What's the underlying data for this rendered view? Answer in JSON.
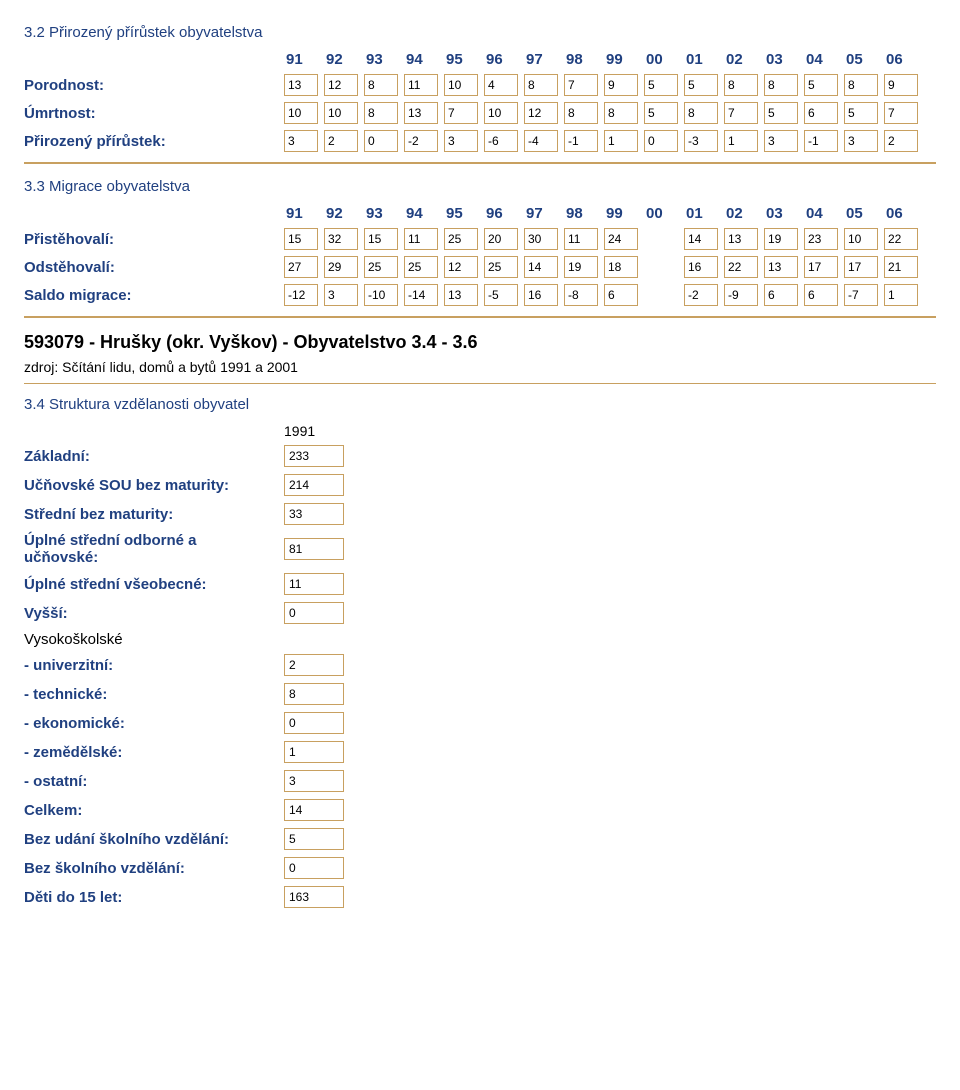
{
  "section32": {
    "title": "3.2 Přirozený přírůstek obyvatelstva",
    "years": [
      "91",
      "92",
      "93",
      "94",
      "95",
      "96",
      "97",
      "98",
      "99",
      "00",
      "01",
      "02",
      "03",
      "04",
      "05",
      "06"
    ],
    "rows": [
      {
        "label": "Porodnost:",
        "values": [
          "13",
          "12",
          "8",
          "11",
          "10",
          "4",
          "8",
          "7",
          "9",
          "5",
          "5",
          "8",
          "8",
          "5",
          "8",
          "9"
        ]
      },
      {
        "label": "Úmrtnost:",
        "values": [
          "10",
          "10",
          "8",
          "13",
          "7",
          "10",
          "12",
          "8",
          "8",
          "5",
          "8",
          "7",
          "5",
          "6",
          "5",
          "7"
        ]
      },
      {
        "label": "Přirozený přírůstek:",
        "values": [
          "3",
          "2",
          "0",
          "-2",
          "3",
          "-6",
          "-4",
          "-1",
          "1",
          "0",
          "-3",
          "1",
          "3",
          "-1",
          "3",
          "2"
        ]
      }
    ]
  },
  "section33": {
    "title": "3.3 Migrace obyvatelstva",
    "years": [
      "91",
      "92",
      "93",
      "94",
      "95",
      "96",
      "97",
      "98",
      "99",
      "00",
      "01",
      "02",
      "03",
      "04",
      "05",
      "06"
    ],
    "skip_index": 9,
    "rows": [
      {
        "label": "Přistěhovalí:",
        "values": [
          "15",
          "32",
          "15",
          "11",
          "25",
          "20",
          "30",
          "11",
          "24",
          "",
          "14",
          "13",
          "19",
          "23",
          "10",
          "22"
        ]
      },
      {
        "label": "Odstěhovalí:",
        "values": [
          "27",
          "29",
          "25",
          "25",
          "12",
          "25",
          "14",
          "19",
          "18",
          "",
          "16",
          "22",
          "13",
          "17",
          "17",
          "21"
        ]
      },
      {
        "label": "Saldo migrace:",
        "values": [
          "-12",
          "3",
          "-10",
          "-14",
          "13",
          "-5",
          "16",
          "-8",
          "6",
          "",
          "-2",
          "-9",
          "6",
          "6",
          "-7",
          "1"
        ]
      }
    ]
  },
  "big_title": "593079 - Hrušky (okr. Vyškov) - Obyvatelstvo 3.4 - 3.6",
  "source": "zdroj: Sčítání lidu, domů a bytů 1991 a 2001",
  "section34": {
    "title": "3.4 Struktura vzdělanosti obyvatel",
    "col_header": "1991",
    "rows": [
      {
        "label": "Základní:",
        "value": "233",
        "bold": true
      },
      {
        "label": "Učňovské SOU bez maturity:",
        "value": "214",
        "bold": true
      },
      {
        "label": "Střední bez maturity:",
        "value": "33",
        "bold": true
      },
      {
        "label": "Úplné střední odborné a učňovské:",
        "value": "81",
        "bold": true
      },
      {
        "label": "Úplné střední všeobecné:",
        "value": "11",
        "bold": true
      },
      {
        "label": "Vyšší:",
        "value": "0",
        "bold": true
      }
    ],
    "vys_label": "Vysokoškolské",
    "vys_rows": [
      {
        "label": "- univerzitní:",
        "value": "2"
      },
      {
        "label": "- technické:",
        "value": "8"
      },
      {
        "label": "- ekonomické:",
        "value": "0"
      },
      {
        "label": "- zemědělské:",
        "value": "1"
      },
      {
        "label": "- ostatní:",
        "value": "3"
      }
    ],
    "tail_rows": [
      {
        "label": "Celkem:",
        "value": "14",
        "bold": true
      },
      {
        "label": "Bez udání školního vzdělání:",
        "value": "5",
        "bold": true
      },
      {
        "label": "Bez školního vzdělání:",
        "value": "0",
        "bold": true
      },
      {
        "label": "Děti do 15 let:",
        "value": "163",
        "bold": true
      }
    ]
  },
  "colors": {
    "heading": "#204080",
    "border": "#c8a060",
    "text": "#000000",
    "background": "#ffffff"
  }
}
